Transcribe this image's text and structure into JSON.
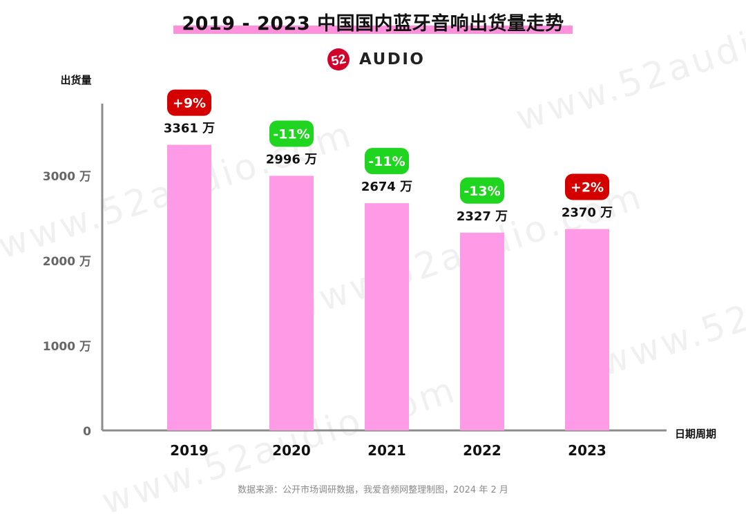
{
  "header": {
    "title": "2019 - 2023 中国国内蓝牙音响出货量走势",
    "logo_mark": "52",
    "logo_text": "AUDIO",
    "accent_color": "#ff90dc"
  },
  "watermark_text": "www.52audio.com",
  "source_note": "数据来源：公开市场调研数据，我爱音频网整理制图，2024 年 2 月",
  "chart_data": {
    "type": "bar",
    "title": "2019 - 2023 中国国内蓝牙音响出货量走势",
    "ylabel": "出货量",
    "xlabel": "日期周期",
    "unit": "万",
    "categories": [
      "2019",
      "2020",
      "2021",
      "2022",
      "2023"
    ],
    "values": [
      3361,
      2996,
      2674,
      2327,
      2370
    ],
    "value_labels": [
      "3361 万",
      "2996 万",
      "2674 万",
      "2327 万",
      "2370 万"
    ],
    "changes": [
      "+9%",
      "-11%",
      "-11%",
      "-13%",
      "+2%"
    ],
    "change_directions": [
      "up",
      "down",
      "down",
      "down",
      "up"
    ],
    "y_ticks": [
      0,
      1000,
      2000,
      3000
    ],
    "y_tick_labels": [
      "0",
      "1000 万",
      "2000 万",
      "3000 万"
    ],
    "ylim": [
      0,
      3800
    ],
    "grid": false,
    "colors": {
      "bar": "#ff9be6",
      "up": "#d40000",
      "down": "#1fd51f",
      "axis": "#8c8c8c"
    }
  }
}
